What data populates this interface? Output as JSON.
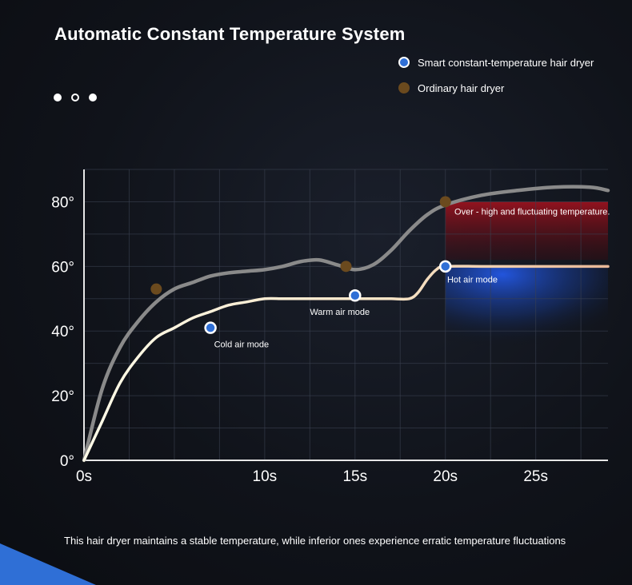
{
  "header": {
    "title": "Automatic Constant Temperature System",
    "pager_dots": [
      "filled",
      "hollow",
      "filled"
    ]
  },
  "colors": {
    "smart_line": "#fff6da",
    "smart_line_end": "#e8b897",
    "smart_marker": "#2f6fd6",
    "ordinary_line": "#8a8a8a",
    "ordinary_marker": "#6b4a1e",
    "over_region": "#8b0f18",
    "hot_region": "#1a4fd0",
    "accent_corner": "#2f6fd6"
  },
  "caption": "This hair dryer maintains a stable temperature, while inferior ones experience erratic temperature fluctuations",
  "chart_data": {
    "type": "line",
    "x_unit": "s",
    "y_unit": "°",
    "xlim": [
      0,
      29
    ],
    "ylim": [
      0,
      90
    ],
    "x_ticks": [
      0,
      10,
      15,
      20,
      25
    ],
    "x_tick_labels": [
      "0s",
      "10s",
      "15s",
      "20s",
      "25s"
    ],
    "y_ticks": [
      0,
      20,
      40,
      60,
      80
    ],
    "y_tick_labels": [
      "0°",
      "20°",
      "40°",
      "60°",
      "80°"
    ],
    "grid": true,
    "legend_position": "top-right",
    "series": [
      {
        "name": "Smart constant-temperature hair dryer",
        "style": "smart",
        "points": [
          [
            0,
            0
          ],
          [
            1,
            12
          ],
          [
            2,
            24
          ],
          [
            3,
            32
          ],
          [
            4,
            38
          ],
          [
            5,
            41
          ],
          [
            6,
            44
          ],
          [
            7,
            46
          ],
          [
            8,
            48
          ],
          [
            9,
            49
          ],
          [
            10,
            50
          ],
          [
            11,
            50
          ],
          [
            12,
            50
          ],
          [
            13,
            50
          ],
          [
            14,
            50
          ],
          [
            15,
            50
          ],
          [
            16,
            50
          ],
          [
            17,
            50
          ],
          [
            18,
            50
          ],
          [
            18.5,
            52
          ],
          [
            19,
            56
          ],
          [
            19.5,
            59
          ],
          [
            20,
            60
          ],
          [
            22,
            60
          ],
          [
            24,
            60
          ],
          [
            26,
            60
          ],
          [
            28,
            60
          ],
          [
            29,
            60
          ]
        ],
        "markers": [
          {
            "x": 7,
            "y": 41,
            "label": "Cold air mode"
          },
          {
            "x": 15,
            "y": 51,
            "label": "Warm air mode"
          },
          {
            "x": 20,
            "y": 60,
            "label": "Hot air mode"
          }
        ]
      },
      {
        "name": "Ordinary hair dryer",
        "style": "ordinary",
        "points": [
          [
            0,
            0
          ],
          [
            1,
            22
          ],
          [
            2,
            35
          ],
          [
            3,
            43
          ],
          [
            4,
            49
          ],
          [
            5,
            53
          ],
          [
            6,
            55
          ],
          [
            7,
            57
          ],
          [
            8,
            58
          ],
          [
            9,
            58.5
          ],
          [
            10,
            59
          ],
          [
            11,
            60
          ],
          [
            12,
            61.5
          ],
          [
            13,
            62
          ],
          [
            14,
            60.5
          ],
          [
            15,
            59
          ],
          [
            16,
            60.5
          ],
          [
            17,
            65
          ],
          [
            18,
            71
          ],
          [
            19,
            76
          ],
          [
            20,
            79
          ],
          [
            22,
            82
          ],
          [
            24,
            83.5
          ],
          [
            26,
            84.5
          ],
          [
            28,
            84.5
          ],
          [
            29,
            83.5
          ]
        ],
        "markers": [
          {
            "x": 4,
            "y": 53
          },
          {
            "x": 14.5,
            "y": 60
          },
          {
            "x": 20,
            "y": 80
          }
        ]
      }
    ],
    "regions": [
      {
        "kind": "over",
        "x_from": 20,
        "x_to": 29,
        "y_from": 62,
        "y_to": 80
      },
      {
        "kind": "hot",
        "x_from": 20,
        "x_to": 29,
        "y_from": 35,
        "y_to": 60
      }
    ],
    "annotations": [
      {
        "text": "Over - high and fluctuating temperature.",
        "x": 20.5,
        "y": 76
      },
      {
        "text": "Cold air mode",
        "x": 7.2,
        "y": 35
      },
      {
        "text": "Warm air mode",
        "x": 12.5,
        "y": 45
      },
      {
        "text": "Hot air mode",
        "x": 20.1,
        "y": 55
      }
    ]
  }
}
